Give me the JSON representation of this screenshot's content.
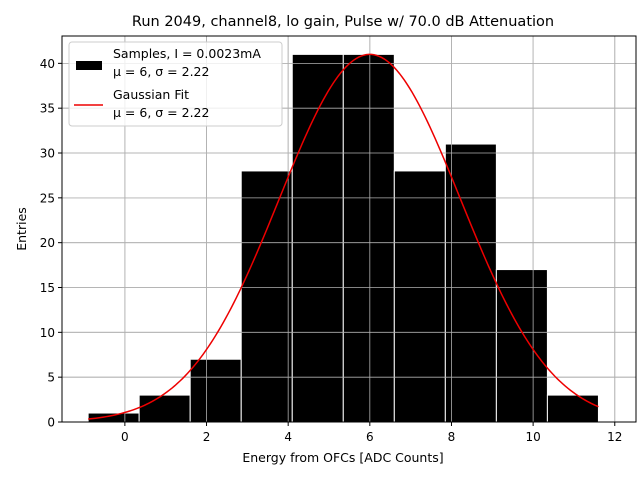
{
  "chart_data": {
    "type": "bar",
    "title": "Run 2049, channel8, lo gain, Pulse w/ 70.0 dB Attenuation",
    "xlabel": "Energy from OFCs [ADC Counts]",
    "ylabel": "Entries",
    "xlim": [
      -1.54,
      12.52
    ],
    "ylim": [
      0,
      43.05
    ],
    "xticks": [
      0,
      2,
      4,
      6,
      8,
      10,
      12
    ],
    "yticks": [
      0,
      5,
      10,
      15,
      20,
      25,
      30,
      35,
      40
    ],
    "grid": true,
    "legend_position": "top-left",
    "histogram": {
      "name": "Samples, I = 0.0023mA",
      "subtitle": "μ = 6, σ = 2.22",
      "bin_edges": [
        -0.9,
        0.35,
        1.6,
        2.85,
        4.1,
        5.35,
        6.6,
        7.85,
        9.1,
        10.35,
        11.6
      ],
      "values": [
        1,
        3,
        7,
        28,
        41,
        41,
        28,
        31,
        17,
        3
      ],
      "color": "#000000",
      "edgecolor": "#ffffff"
    },
    "fit": {
      "name": "Gaussian Fit",
      "subtitle": "μ = 6, σ = 2.22",
      "mu": 6,
      "sigma": 2.22,
      "amplitude": 41,
      "x_range": [
        -0.9,
        11.6
      ],
      "color": "#ee0000"
    }
  }
}
